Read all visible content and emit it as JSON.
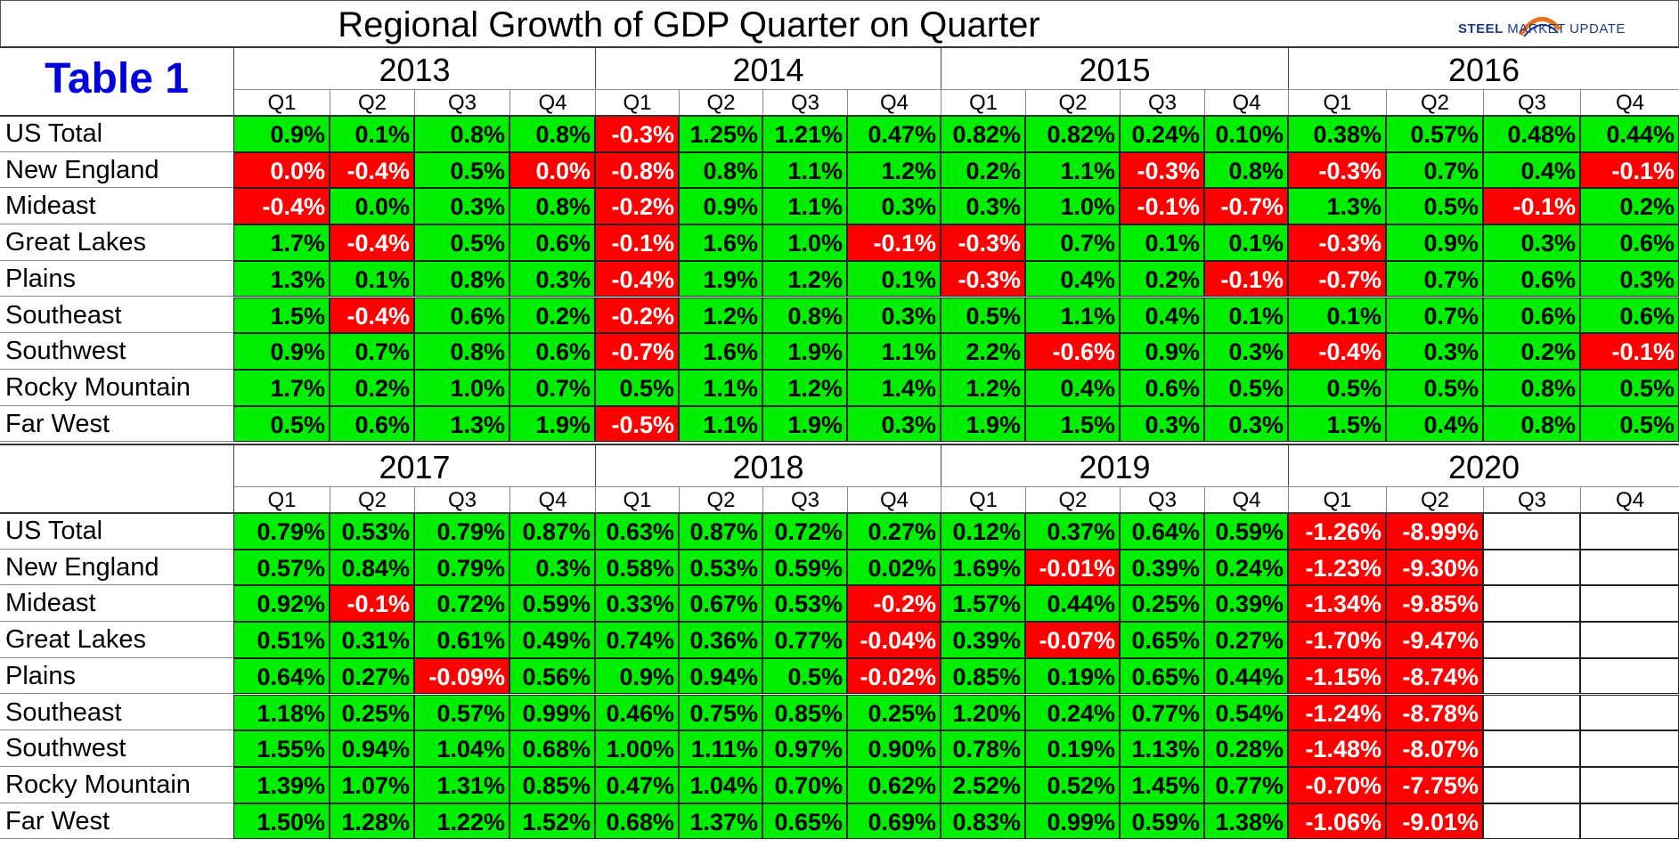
{
  "chart_data": {
    "type": "table",
    "title": "Regional Growth of GDP Quarter on Quarter",
    "label": "Table 1",
    "logo_text": [
      "STEEL",
      "MARKET UPDATE"
    ],
    "quarters": [
      "Q1",
      "Q2",
      "Q3",
      "Q4"
    ],
    "regions": [
      "US Total",
      "New England",
      "Mideast",
      "Great Lakes",
      "Plains",
      "Southeast",
      "Southwest",
      "Rocky Mountain",
      "Far West"
    ],
    "positive_color": "#00ee00",
    "negative_color": "#ff0000",
    "panels": [
      {
        "years": [
          "2013",
          "2014",
          "2015",
          "2016"
        ],
        "rows": [
          [
            "0.9%",
            "0.1%",
            "0.8%",
            "0.8%",
            "-0.3%",
            "1.25%",
            "1.21%",
            "0.47%",
            "0.82%",
            "0.82%",
            "0.24%",
            "0.10%",
            "0.38%",
            "0.57%",
            "0.48%",
            "0.44%"
          ],
          [
            "0.0%",
            "-0.4%",
            "0.5%",
            "0.0%",
            "-0.8%",
            "0.8%",
            "1.1%",
            "1.2%",
            "0.2%",
            "1.1%",
            "-0.3%",
            "0.8%",
            "-0.3%",
            "0.7%",
            "0.4%",
            "-0.1%"
          ],
          [
            "-0.4%",
            "0.0%",
            "0.3%",
            "0.8%",
            "-0.2%",
            "0.9%",
            "1.1%",
            "0.3%",
            "0.3%",
            "1.0%",
            "-0.1%",
            "-0.7%",
            "1.3%",
            "0.5%",
            "-0.1%",
            "0.2%"
          ],
          [
            "1.7%",
            "-0.4%",
            "0.5%",
            "0.6%",
            "-0.1%",
            "1.6%",
            "1.0%",
            "-0.1%",
            "-0.3%",
            "0.7%",
            "0.1%",
            "0.1%",
            "-0.3%",
            "0.9%",
            "0.3%",
            "0.6%"
          ],
          [
            "1.3%",
            "0.1%",
            "0.8%",
            "0.3%",
            "-0.4%",
            "1.9%",
            "1.2%",
            "0.1%",
            "-0.3%",
            "0.4%",
            "0.2%",
            "-0.1%",
            "-0.7%",
            "0.7%",
            "0.6%",
            "0.3%"
          ],
          [
            "1.5%",
            "-0.4%",
            "0.6%",
            "0.2%",
            "-0.2%",
            "1.2%",
            "0.8%",
            "0.3%",
            "0.5%",
            "1.1%",
            "0.4%",
            "0.1%",
            "0.1%",
            "0.7%",
            "0.6%",
            "0.6%"
          ],
          [
            "0.9%",
            "0.7%",
            "0.8%",
            "0.6%",
            "-0.7%",
            "1.6%",
            "1.9%",
            "1.1%",
            "2.2%",
            "-0.6%",
            "0.9%",
            "0.3%",
            "-0.4%",
            "0.3%",
            "0.2%",
            "-0.1%"
          ],
          [
            "1.7%",
            "0.2%",
            "1.0%",
            "0.7%",
            "0.5%",
            "1.1%",
            "1.2%",
            "1.4%",
            "1.2%",
            "0.4%",
            "0.6%",
            "0.5%",
            "0.5%",
            "0.5%",
            "0.8%",
            "0.5%"
          ],
          [
            "0.5%",
            "0.6%",
            "1.3%",
            "1.9%",
            "-0.5%",
            "1.1%",
            "1.9%",
            "0.3%",
            "1.9%",
            "1.5%",
            "0.3%",
            "0.3%",
            "1.5%",
            "0.4%",
            "0.8%",
            "0.5%"
          ]
        ],
        "negative_flags": [
          [
            0,
            0,
            0,
            0,
            1,
            0,
            0,
            0,
            0,
            0,
            0,
            0,
            0,
            0,
            0,
            0
          ],
          [
            1,
            1,
            0,
            1,
            1,
            0,
            0,
            0,
            0,
            0,
            1,
            0,
            1,
            0,
            0,
            1
          ],
          [
            1,
            0,
            0,
            0,
            1,
            0,
            0,
            0,
            0,
            0,
            1,
            1,
            0,
            0,
            1,
            0
          ],
          [
            0,
            1,
            0,
            0,
            1,
            0,
            0,
            1,
            1,
            0,
            0,
            0,
            1,
            0,
            0,
            0
          ],
          [
            0,
            0,
            0,
            0,
            1,
            0,
            0,
            0,
            1,
            0,
            0,
            1,
            1,
            0,
            0,
            0
          ],
          [
            0,
            1,
            0,
            0,
            1,
            0,
            0,
            0,
            0,
            0,
            0,
            0,
            0,
            0,
            0,
            0
          ],
          [
            0,
            0,
            0,
            0,
            1,
            0,
            0,
            0,
            0,
            1,
            0,
            0,
            1,
            0,
            0,
            1
          ],
          [
            0,
            0,
            0,
            0,
            0,
            0,
            0,
            0,
            0,
            0,
            0,
            0,
            0,
            0,
            0,
            0
          ],
          [
            0,
            0,
            0,
            0,
            1,
            0,
            0,
            0,
            0,
            0,
            0,
            0,
            0,
            0,
            0,
            0
          ]
        ]
      },
      {
        "years": [
          "2017",
          "2018",
          "2019",
          "2020"
        ],
        "rows": [
          [
            "0.79%",
            "0.53%",
            "0.79%",
            "0.87%",
            "0.63%",
            "0.87%",
            "0.72%",
            "0.27%",
            "0.12%",
            "0.37%",
            "0.64%",
            "0.59%",
            "-1.26%",
            "-8.99%",
            "",
            ""
          ],
          [
            "0.57%",
            "0.84%",
            "0.79%",
            "0.3%",
            "0.58%",
            "0.53%",
            "0.59%",
            "0.02%",
            "1.69%",
            "-0.01%",
            "0.39%",
            "0.24%",
            "-1.23%",
            "-9.30%",
            "",
            ""
          ],
          [
            "0.92%",
            "-0.1%",
            "0.72%",
            "0.59%",
            "0.33%",
            "0.67%",
            "0.53%",
            "-0.2%",
            "1.57%",
            "0.44%",
            "0.25%",
            "0.39%",
            "-1.34%",
            "-9.85%",
            "",
            ""
          ],
          [
            "0.51%",
            "0.31%",
            "0.61%",
            "0.49%",
            "0.74%",
            "0.36%",
            "0.77%",
            "-0.04%",
            "0.39%",
            "-0.07%",
            "0.65%",
            "0.27%",
            "-1.70%",
            "-9.47%",
            "",
            ""
          ],
          [
            "0.64%",
            "0.27%",
            "-0.09%",
            "0.56%",
            "0.9%",
            "0.94%",
            "0.5%",
            "-0.02%",
            "0.85%",
            "0.19%",
            "0.65%",
            "0.44%",
            "-1.15%",
            "-8.74%",
            "",
            ""
          ],
          [
            "1.18%",
            "0.25%",
            "0.57%",
            "0.99%",
            "0.46%",
            "0.75%",
            "0.85%",
            "0.25%",
            "1.20%",
            "0.24%",
            "0.77%",
            "0.54%",
            "-1.24%",
            "-8.78%",
            "",
            ""
          ],
          [
            "1.55%",
            "0.94%",
            "1.04%",
            "0.68%",
            "1.00%",
            "1.11%",
            "0.97%",
            "0.90%",
            "0.78%",
            "0.19%",
            "1.13%",
            "0.28%",
            "-1.48%",
            "-8.07%",
            "",
            ""
          ],
          [
            "1.39%",
            "1.07%",
            "1.31%",
            "0.85%",
            "0.47%",
            "1.04%",
            "0.70%",
            "0.62%",
            "2.52%",
            "0.52%",
            "1.45%",
            "0.77%",
            "-0.70%",
            "-7.75%",
            "",
            ""
          ],
          [
            "1.50%",
            "1.28%",
            "1.22%",
            "1.52%",
            "0.68%",
            "1.37%",
            "0.65%",
            "0.69%",
            "0.83%",
            "0.99%",
            "0.59%",
            "1.38%",
            "-1.06%",
            "-9.01%",
            "",
            ""
          ]
        ],
        "negative_flags": [
          [
            0,
            0,
            0,
            0,
            0,
            0,
            0,
            0,
            0,
            0,
            0,
            0,
            1,
            1,
            0,
            0
          ],
          [
            0,
            0,
            0,
            0,
            0,
            0,
            0,
            0,
            0,
            1,
            0,
            0,
            1,
            1,
            0,
            0
          ],
          [
            0,
            1,
            0,
            0,
            0,
            0,
            0,
            1,
            0,
            0,
            0,
            0,
            1,
            1,
            0,
            0
          ],
          [
            0,
            0,
            0,
            0,
            0,
            0,
            0,
            1,
            0,
            1,
            0,
            0,
            1,
            1,
            0,
            0
          ],
          [
            0,
            0,
            1,
            0,
            0,
            0,
            0,
            1,
            0,
            0,
            0,
            0,
            1,
            1,
            0,
            0
          ],
          [
            0,
            0,
            0,
            0,
            0,
            0,
            0,
            0,
            0,
            0,
            0,
            0,
            1,
            1,
            0,
            0
          ],
          [
            0,
            0,
            0,
            0,
            0,
            0,
            0,
            0,
            0,
            0,
            0,
            0,
            1,
            1,
            0,
            0
          ],
          [
            0,
            0,
            0,
            0,
            0,
            0,
            0,
            0,
            0,
            0,
            0,
            0,
            1,
            1,
            0,
            0
          ],
          [
            0,
            0,
            0,
            0,
            0,
            0,
            0,
            0,
            0,
            0,
            0,
            0,
            1,
            1,
            0,
            0
          ]
        ]
      }
    ]
  }
}
